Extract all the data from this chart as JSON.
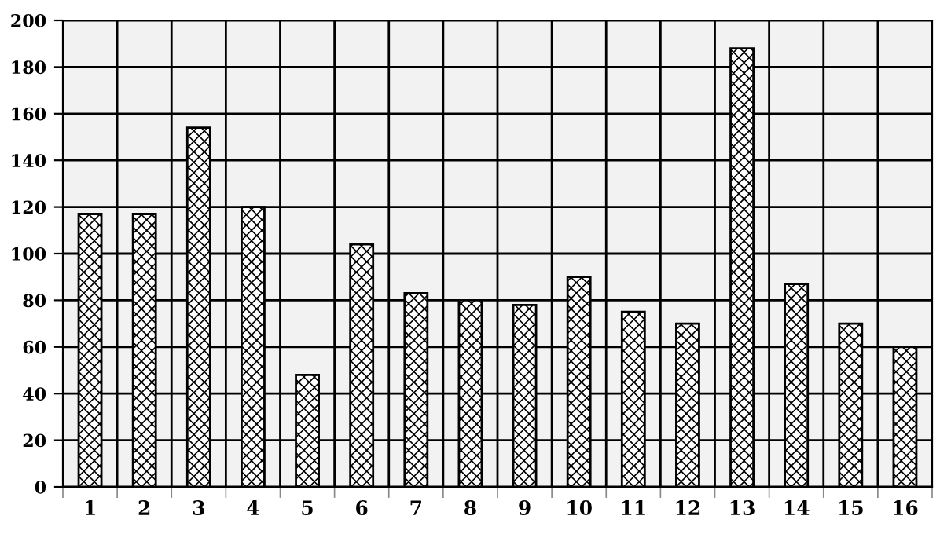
{
  "chart_data": {
    "type": "bar",
    "categories": [
      "1",
      "2",
      "3",
      "4",
      "5",
      "6",
      "7",
      "8",
      "9",
      "10",
      "11",
      "12",
      "13",
      "14",
      "15",
      "16"
    ],
    "values": [
      117,
      117,
      154,
      120,
      48,
      104,
      83,
      80,
      78,
      90,
      75,
      70,
      188,
      87,
      70,
      60
    ],
    "color": "#000000",
    "ylim": [
      0,
      200
    ],
    "yticks": [
      0,
      20,
      40,
      60,
      80,
      100,
      120,
      140,
      160,
      180,
      200
    ],
    "grid": true,
    "legend": false
  }
}
